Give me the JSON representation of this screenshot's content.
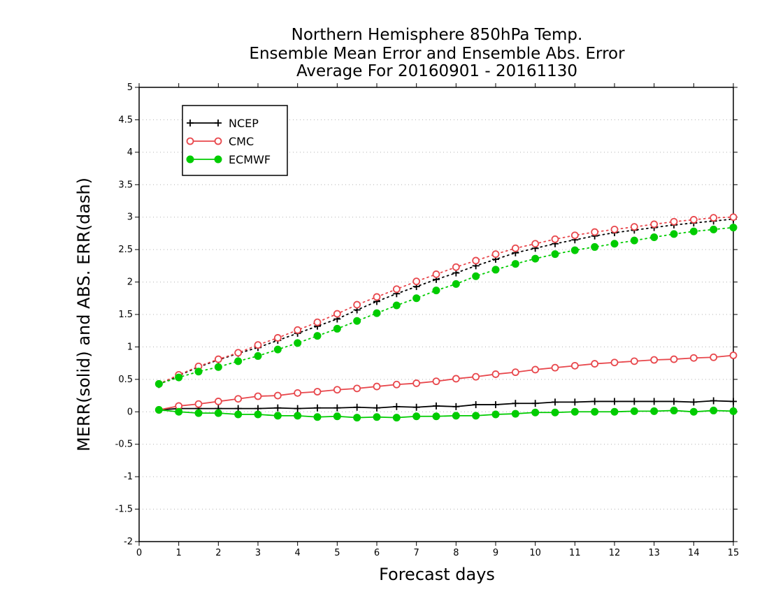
{
  "chart_data": {
    "type": "line",
    "title": [
      "Northern Hemisphere 850hPa Temp.",
      "Ensemble Mean Error and Ensemble Abs. Error",
      "Average For 20160901 - 20161130"
    ],
    "xlabel": "Forecast days",
    "ylabel": "MERR(solid) and ABS. ERR(dash)",
    "xlim": [
      0,
      15
    ],
    "ylim": [
      -2,
      5
    ],
    "xticks": [
      "0",
      "1",
      "2",
      "3",
      "4",
      "5",
      "6",
      "7",
      "8",
      "9",
      "10",
      "11",
      "12",
      "13",
      "14",
      "15"
    ],
    "yticks": [
      "-2",
      "-1.5",
      "-1",
      "-0.5",
      "0",
      "0.5",
      "1",
      "1.5",
      "2",
      "2.5",
      "3",
      "3.5",
      "4",
      "4.5",
      "5"
    ],
    "grid": "horizontal dotted",
    "legend_position": "top-left",
    "x": [
      0.5,
      1,
      1.5,
      2,
      2.5,
      3,
      3.5,
      4,
      4.5,
      5,
      5.5,
      6,
      6.5,
      7,
      7.5,
      8,
      8.5,
      9,
      9.5,
      10,
      10.5,
      11,
      11.5,
      12,
      12.5,
      13,
      13.5,
      14,
      14.5,
      15
    ],
    "series": [
      {
        "name": "NCEP",
        "color": "#000000",
        "marker": "plus",
        "merr": [
          0.03,
          0.05,
          0.05,
          0.05,
          0.05,
          0.05,
          0.06,
          0.05,
          0.06,
          0.06,
          0.07,
          0.06,
          0.08,
          0.07,
          0.09,
          0.08,
          0.11,
          0.11,
          0.13,
          0.13,
          0.15,
          0.15,
          0.16,
          0.16,
          0.16,
          0.16,
          0.16,
          0.15,
          0.17,
          0.16
        ],
        "abs_err": [
          0.42,
          0.56,
          0.69,
          0.8,
          0.9,
          0.99,
          1.1,
          1.21,
          1.32,
          1.43,
          1.57,
          1.7,
          1.82,
          1.93,
          2.04,
          2.14,
          2.25,
          2.35,
          2.45,
          2.52,
          2.59,
          2.65,
          2.71,
          2.76,
          2.8,
          2.84,
          2.88,
          2.91,
          2.94,
          2.97
        ]
      },
      {
        "name": "CMC",
        "color": "#e8474c",
        "marker": "open-circle",
        "merr": [
          0.03,
          0.09,
          0.12,
          0.16,
          0.2,
          0.24,
          0.25,
          0.29,
          0.31,
          0.34,
          0.36,
          0.39,
          0.42,
          0.44,
          0.47,
          0.51,
          0.54,
          0.58,
          0.61,
          0.65,
          0.68,
          0.71,
          0.74,
          0.76,
          0.78,
          0.8,
          0.81,
          0.83,
          0.84,
          0.87
        ],
        "abs_err": [
          0.43,
          0.57,
          0.7,
          0.81,
          0.91,
          1.03,
          1.14,
          1.26,
          1.38,
          1.51,
          1.65,
          1.77,
          1.89,
          2.01,
          2.12,
          2.23,
          2.33,
          2.43,
          2.52,
          2.59,
          2.66,
          2.72,
          2.77,
          2.81,
          2.85,
          2.89,
          2.93,
          2.96,
          2.99,
          3.0
        ]
      },
      {
        "name": "ECMWF",
        "color": "#00cc00",
        "marker": "filled-circle",
        "merr": [
          0.03,
          0.0,
          -0.02,
          -0.02,
          -0.04,
          -0.04,
          -0.06,
          -0.06,
          -0.08,
          -0.07,
          -0.09,
          -0.08,
          -0.09,
          -0.07,
          -0.07,
          -0.06,
          -0.06,
          -0.04,
          -0.03,
          -0.01,
          -0.01,
          0.0,
          0.0,
          0.0,
          0.01,
          0.01,
          0.02,
          0.0,
          0.02,
          0.01
        ],
        "abs_err": [
          0.43,
          0.53,
          0.62,
          0.69,
          0.78,
          0.86,
          0.96,
          1.06,
          1.17,
          1.28,
          1.4,
          1.52,
          1.64,
          1.75,
          1.87,
          1.97,
          2.09,
          2.19,
          2.28,
          2.36,
          2.43,
          2.49,
          2.54,
          2.59,
          2.64,
          2.69,
          2.74,
          2.78,
          2.81,
          2.84
        ]
      }
    ]
  }
}
